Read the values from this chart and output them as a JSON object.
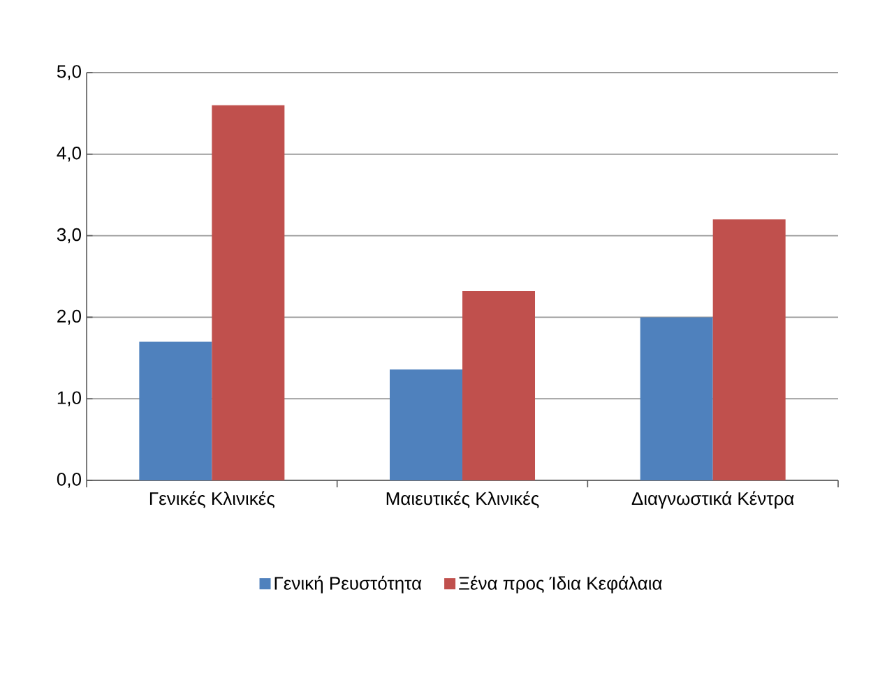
{
  "chart_data": {
    "type": "bar",
    "categories": [
      "Γενικές Κλινικές",
      "Μαιευτικές Κλινικές",
      "Διαγνωστικά Κέντρα"
    ],
    "series": [
      {
        "name": "Γενική Ρευστότητα",
        "color": "#4f81bd",
        "values": [
          1.7,
          1.36,
          2.0
        ]
      },
      {
        "name": "Ξένα προς Ίδια Κεφάλαια",
        "color": "#c0504d",
        "values": [
          4.6,
          2.32,
          3.2
        ]
      }
    ],
    "ylim": [
      0,
      5
    ],
    "yticks": [
      {
        "value": 0,
        "label": "0,0"
      },
      {
        "value": 1,
        "label": "1,0"
      },
      {
        "value": 2,
        "label": "2,0"
      },
      {
        "value": 3,
        "label": "3,0"
      },
      {
        "value": 4,
        "label": "4,0"
      },
      {
        "value": 5,
        "label": "5,0"
      }
    ],
    "grid": "y",
    "legend": "bottom"
  }
}
